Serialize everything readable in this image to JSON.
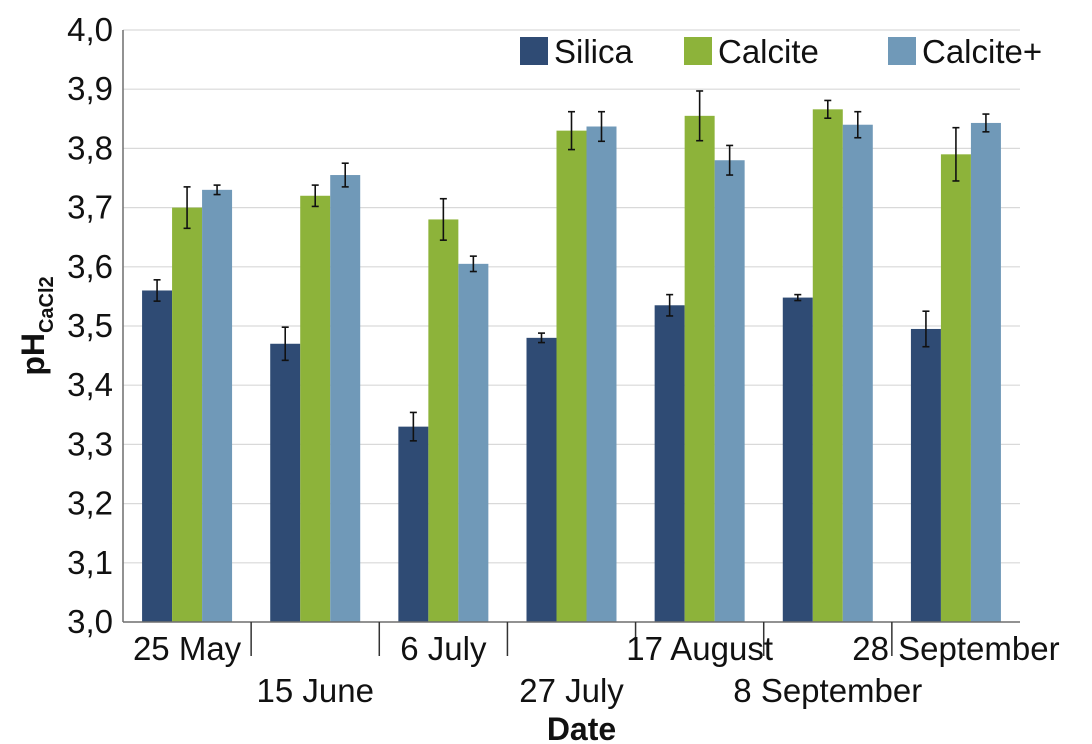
{
  "chart_data": {
    "type": "bar",
    "title": "",
    "xlabel": "Date",
    "ylabel_main": "pH",
    "ylabel_sub": "CaCl2",
    "categories": [
      "25 May",
      "15 June",
      "6 July",
      "27 July",
      "17 August",
      "8 September",
      "28 September"
    ],
    "ylim": [
      3.0,
      4.0
    ],
    "yticks": [
      "3,0",
      "3,1",
      "3,2",
      "3,3",
      "3,4",
      "3,5",
      "3,6",
      "3,7",
      "3,8",
      "3,9",
      "4,0"
    ],
    "grid": true,
    "legend_position": "top-right",
    "series": [
      {
        "name": "Silica",
        "color": "#2f4b74",
        "values": [
          3.56,
          3.47,
          3.33,
          3.48,
          3.535,
          3.548,
          3.495
        ],
        "errors": [
          0.018,
          0.028,
          0.024,
          0.008,
          0.018,
          0.005,
          0.03
        ]
      },
      {
        "name": "Calcite",
        "color": "#8db33a",
        "values": [
          3.7,
          3.72,
          3.68,
          3.83,
          3.855,
          3.866,
          3.79
        ],
        "errors": [
          0.035,
          0.018,
          0.035,
          0.032,
          0.042,
          0.015,
          0.045
        ]
      },
      {
        "name": "Calcite+",
        "color": "#7099b8",
        "values": [
          3.73,
          3.755,
          3.605,
          3.837,
          3.78,
          3.84,
          3.843
        ],
        "errors": [
          0.008,
          0.02,
          0.013,
          0.025,
          0.025,
          0.022,
          0.015
        ]
      }
    ]
  }
}
